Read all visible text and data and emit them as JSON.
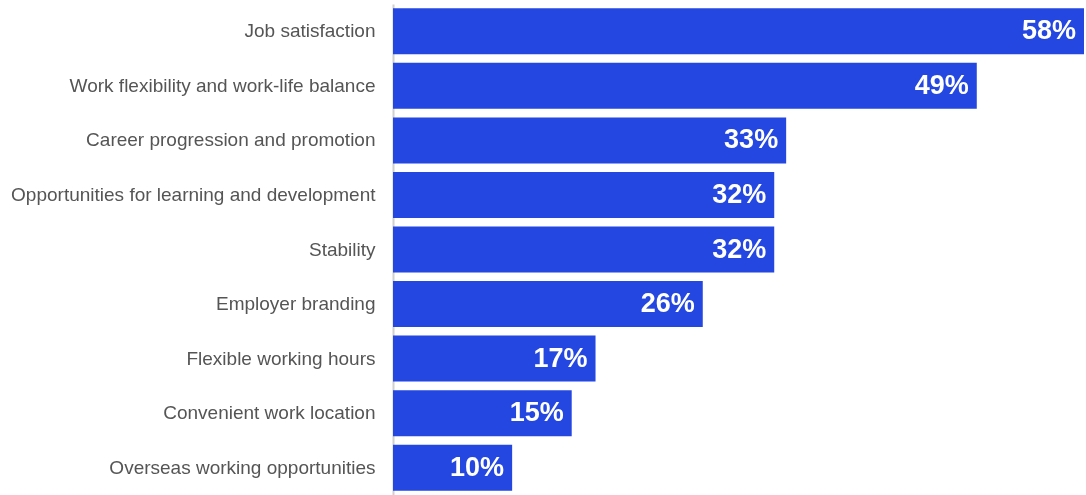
{
  "chart_data": {
    "type": "bar",
    "orientation": "horizontal",
    "categories": [
      "Job satisfaction",
      "Work flexibility and work-life balance",
      "Career progression and promotion",
      "Opportunities for learning and development",
      "Stability",
      "Employer branding",
      "Flexible working hours",
      "Convenient work location",
      "Overseas working opportunities"
    ],
    "values": [
      58,
      49,
      33,
      32,
      32,
      26,
      17,
      15,
      10
    ],
    "value_labels": [
      "58%",
      "49%",
      "33%",
      "32%",
      "32%",
      "26%",
      "17%",
      "15%",
      "10%"
    ],
    "color": "#2347e0"
  }
}
